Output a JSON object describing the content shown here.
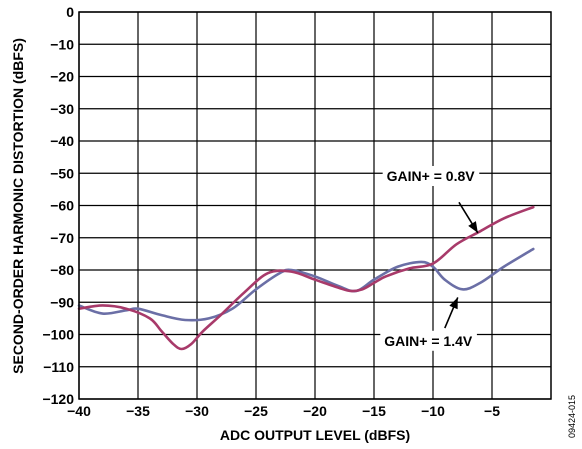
{
  "chart_data": {
    "type": "line",
    "xlabel": "ADC OUTPUT LEVEL (dBFS)",
    "ylabel": "SECOND-ORDER HARMONIC DISTORTION (dBFS)",
    "xlim": [
      -40,
      0
    ],
    "ylim": [
      -120,
      0
    ],
    "x_ticks": [
      -40,
      -35,
      -30,
      -25,
      -20,
      -15,
      -10,
      -5
    ],
    "y_ticks": [
      0,
      -10,
      -20,
      -30,
      -40,
      -50,
      -60,
      -70,
      -80,
      -90,
      -100,
      -110,
      -120
    ],
    "x_tick_labels": [
      "−40",
      "−35",
      "−30",
      "−25",
      "−20",
      "−15",
      "−10",
      "−5"
    ],
    "y_tick_labels": [
      "0",
      "−10",
      "−20",
      "−30",
      "−40",
      "−50",
      "−60",
      "−70",
      "−80",
      "−90",
      "−100",
      "−110",
      "−120"
    ],
    "grid": true,
    "series": [
      {
        "label": "GAIN+ = 0.8V",
        "color": "#a83a6a",
        "x": [
          -40,
          -38,
          -36,
          -34,
          -33,
          -32,
          -31.3,
          -30.5,
          -29.5,
          -28,
          -26,
          -24,
          -22,
          -20,
          -18,
          -17,
          -16,
          -15,
          -14,
          -12,
          -10,
          -8,
          -6,
          -4,
          -1.5
        ],
        "y": [
          -92,
          -91,
          -92,
          -95,
          -99,
          -103,
          -104.5,
          -103,
          -99,
          -94,
          -87,
          -81,
          -80.5,
          -83,
          -85.5,
          -86.5,
          -86,
          -84,
          -82,
          -79.5,
          -78,
          -72,
          -68,
          -64,
          -60.5
        ]
      },
      {
        "label": "GAIN+ = 1.4V",
        "color": "#6b6fa6",
        "x": [
          -40,
          -38,
          -36,
          -35,
          -33,
          -31,
          -29,
          -27,
          -25,
          -23,
          -22,
          -20,
          -18,
          -16.5,
          -15,
          -13,
          -11,
          -10,
          -9,
          -7.5,
          -6,
          -4,
          -1.5
        ],
        "y": [
          -91,
          -93.5,
          -92.5,
          -92,
          -94,
          -95.5,
          -95,
          -92,
          -86,
          -81,
          -80,
          -82,
          -85,
          -86.5,
          -83,
          -79,
          -77.5,
          -79,
          -83,
          -86,
          -84,
          -79,
          -73.5
        ]
      }
    ],
    "annotations": [
      {
        "text": "GAIN+ = 0.8V",
        "series": 0,
        "x_label": -10.2,
        "y_label": -52.4,
        "x_arrow_tail": -7.8,
        "y_arrow_tail": -59,
        "x_arrow_head": -6.2,
        "y_arrow_head": -68.5
      },
      {
        "text": "GAIN+ = 1.4V",
        "series": 1,
        "x_label": -10.4,
        "y_label": -103.5,
        "x_arrow_tail": -9.0,
        "y_arrow_tail": -98,
        "x_arrow_head": -7.9,
        "y_arrow_head": -88.5
      }
    ]
  },
  "figure_id": "09424-015"
}
